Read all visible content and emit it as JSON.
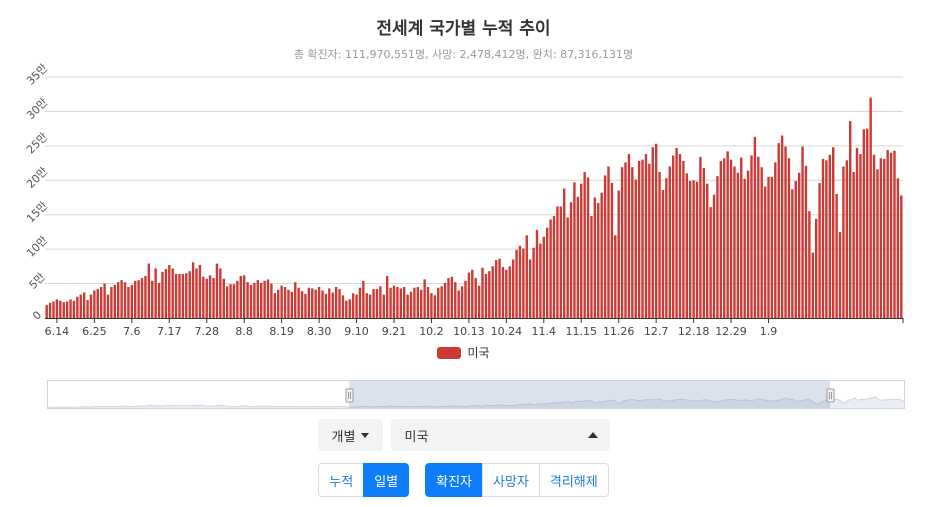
{
  "title": "전세계 국가별 누적 추이",
  "subtitle": "총 확진자: 111,970,551명, 사망: 2,478,412명, 완치: 87,316,131명",
  "legend": {
    "label": "미국",
    "color": "#cc3a35"
  },
  "controls": {
    "mode_dropdown": "개별",
    "country_dropdown": "미국",
    "view_buttons": [
      {
        "label": "누적",
        "active": false
      },
      {
        "label": "일별",
        "active": true
      }
    ],
    "metric_buttons": [
      {
        "label": "확진자",
        "active": true
      },
      {
        "label": "사망자",
        "active": false
      },
      {
        "label": "격리해제",
        "active": false
      }
    ]
  },
  "chart_data": {
    "type": "bar",
    "title": "전세계 국가별 누적 추이",
    "series": [
      {
        "name": "미국",
        "color": "#cc3a35"
      }
    ],
    "y_ticks": [
      "0",
      "5만",
      "10만",
      "15만",
      "20만",
      "25만",
      "30만",
      "35만"
    ],
    "ylim": [
      0,
      350000
    ],
    "grid": true,
    "x_tick_labels": [
      "6.14",
      "6.25",
      "7.6",
      "7.17",
      "7.28",
      "8.8",
      "8.19",
      "8.30",
      "9.10",
      "9.21",
      "10.2",
      "10.13",
      "10.24",
      "11.4",
      "11.15",
      "11.26",
      "12.7",
      "12.18",
      "12.29",
      "1.9"
    ],
    "first_date": "2020-06-11",
    "values": [
      19000,
      22000,
      24000,
      27000,
      25000,
      23000,
      24000,
      27000,
      25000,
      31000,
      34000,
      37000,
      26000,
      34000,
      40000,
      42000,
      45000,
      50000,
      34000,
      45000,
      48000,
      52000,
      55000,
      52000,
      45000,
      48000,
      54000,
      55000,
      58000,
      61000,
      79000,
      54000,
      72000,
      51000,
      67000,
      71000,
      77000,
      72000,
      64000,
      64000,
      64000,
      65000,
      68000,
      81000,
      72000,
      77000,
      60000,
      57000,
      62000,
      58000,
      79000,
      72000,
      57000,
      46000,
      49000,
      49000,
      54000,
      61000,
      62000,
      52000,
      48000,
      51000,
      55000,
      51000,
      54000,
      56000,
      50000,
      36000,
      41000,
      47000,
      45000,
      41000,
      38000,
      52000,
      44000,
      39000,
      35000,
      44000,
      43000,
      41000,
      45000,
      40000,
      35000,
      43000,
      37000,
      45000,
      42000,
      33000,
      25000,
      27000,
      36000,
      34000,
      44000,
      54000,
      36000,
      34000,
      42000,
      42000,
      46000,
      34000,
      61000,
      44000,
      47000,
      45000,
      43000,
      45000,
      34000,
      38000,
      44000,
      45000,
      41000,
      56000,
      45000,
      36000,
      33000,
      44000,
      46000,
      51000,
      58000,
      60000,
      52000,
      40000,
      46000,
      54000,
      66000,
      70000,
      58000,
      47000,
      73000,
      64000,
      68000,
      75000,
      84000,
      86000,
      74000,
      70000,
      75000,
      85000,
      99000,
      105000,
      101000,
      120000,
      85000,
      102000,
      128000,
      108000,
      118000,
      131000,
      143000,
      148000,
      162000,
      162000,
      188000,
      146000,
      168000,
      197000,
      176000,
      195000,
      212000,
      204000,
      148000,
      175000,
      167000,
      182000,
      207000,
      220000,
      196000,
      120000,
      185000,
      219000,
      226000,
      238000,
      219000,
      201000,
      228000,
      230000,
      238000,
      224000,
      248000,
      253000,
      212000,
      186000,
      203000,
      220000,
      236000,
      247000,
      238000,
      228000,
      210000,
      199000,
      200000,
      198000,
      234000,
      218000,
      195000,
      161000,
      179000,
      206000,
      228000,
      232000,
      242000,
      230000,
      220000,
      211000,
      233000,
      202000,
      214000,
      236000,
      263000,
      234000,
      219000,
      191000,
      205000,
      205000,
      226000,
      254000,
      265000,
      249000,
      232000,
      187000,
      199000,
      211000,
      249000,
      221000,
      155000,
      95000,
      144000,
      196000,
      231000,
      229000,
      237000,
      248000,
      180000,
      125000,
      220000,
      229000,
      286000,
      212000,
      247000,
      238000,
      274000,
      275000,
      320000,
      237000,
      216000,
      232000,
      231000,
      244000,
      240000,
      243000,
      203000,
      178000
    ]
  }
}
